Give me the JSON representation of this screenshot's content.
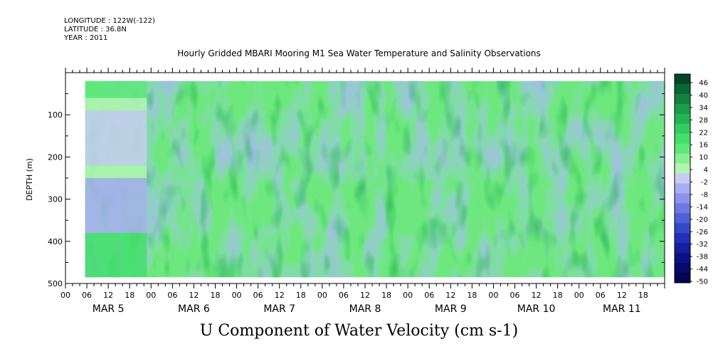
{
  "header": {
    "longitude": "LONGITUDE : 122W(-122)",
    "latitude": "LATITUDE : 36.8N",
    "year": "YEAR : 2011"
  },
  "chart_data": {
    "type": "heatmap",
    "title": "Hourly Gridded MBARI Mooring M1 Sea Water Temperature and Salinity Observations",
    "bottom_title": "U Component of Water Velocity (cm s-1)",
    "ylabel": "DEPTH (m)",
    "ylim": [
      500,
      0
    ],
    "y_ticks": [
      100,
      200,
      300,
      400,
      500
    ],
    "x_hour_labels": [
      "00",
      "06",
      "12",
      "18",
      "00",
      "06",
      "12",
      "18",
      "00",
      "06",
      "12",
      "18",
      "00",
      "06",
      "12",
      "18",
      "00",
      "06",
      "12",
      "18",
      "00",
      "06",
      "12",
      "18",
      "00",
      "06",
      "12",
      "18"
    ],
    "x_day_labels": [
      "MAR  5",
      "MAR  6",
      "MAR  7",
      "MAR  8",
      "MAR  9",
      "MAR 10",
      "MAR 11"
    ],
    "x_range_days": [
      0,
      7
    ],
    "data_extent": {
      "start_day": 0.23,
      "end_day": 7.0,
      "depth_top": 20,
      "depth_bottom": 485
    },
    "colorbar_levels": [
      "46",
      "40",
      "34",
      "28",
      "22",
      "16",
      "10",
      "4",
      "-2",
      "-8",
      "-14",
      "-20",
      "-26",
      "-32",
      "-38",
      "-44",
      "-50"
    ],
    "colorbar_colors": [
      "#00442a",
      "#0a6634",
      "#12823f",
      "#1a9c4a",
      "#24b456",
      "#32cc62",
      "#44de6c",
      "#5ee87a",
      "#88f090",
      "#b2f4b2",
      "#c8ccf4",
      "#a8aef0",
      "#8c94ea",
      "#6e78e2",
      "#5060d8",
      "#3448ca",
      "#2030b8",
      "#141e9e",
      "#0c1284",
      "#060a6a",
      "#020552"
    ]
  }
}
